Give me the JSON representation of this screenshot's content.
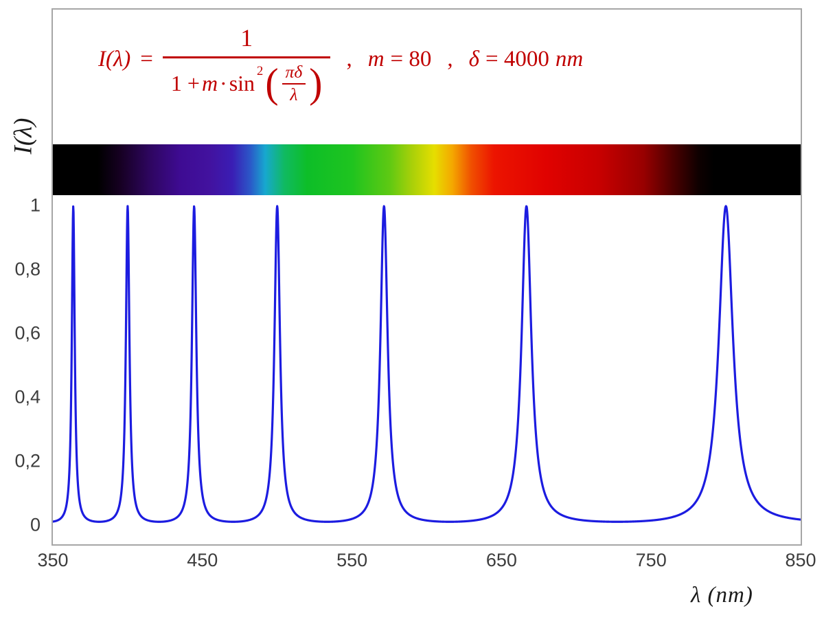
{
  "formula": {
    "color": "#c00000",
    "lhs_func": "I(λ)",
    "equals": "=",
    "numerator": "1",
    "den_one_plus": "1 + ",
    "den_m": "m",
    "den_cdot": " · ",
    "den_sin": "sin",
    "den_power": "2",
    "paren_open": "(",
    "paren_close": ")",
    "inner_numerator": "πδ",
    "inner_denominator": "λ",
    "comma": ",",
    "m_name": "m",
    "m_value": "= 80",
    "delta_name": "δ",
    "delta_value": "= 4000",
    "delta_unit": "nm"
  },
  "chart_data": {
    "type": "line",
    "function": "I(lambda) = 1 / (1 + m * sin^2(pi*delta/lambda))",
    "parameters": {
      "m": 80,
      "delta_nm": 4000
    },
    "x_range_nm": [
      350,
      850
    ],
    "y_range": [
      0,
      1
    ],
    "xlabel": "λ (nm)",
    "ylabel": "I(λ)",
    "x_ticks": [
      {
        "value": 350,
        "label": "350"
      },
      {
        "value": 450,
        "label": "450"
      },
      {
        "value": 550,
        "label": "550"
      },
      {
        "value": 650,
        "label": "650"
      },
      {
        "value": 750,
        "label": "750"
      },
      {
        "value": 850,
        "label": "850"
      }
    ],
    "y_ticks": [
      {
        "value": 0,
        "label": "0"
      },
      {
        "value": 0.2,
        "label": "0,2"
      },
      {
        "value": 0.4,
        "label": "0,4"
      },
      {
        "value": 0.6,
        "label": "0,6"
      },
      {
        "value": 0.8,
        "label": "0,8"
      },
      {
        "value": 1,
        "label": "1"
      }
    ],
    "peak_wavelengths_nm": [
      363.6,
      400.0,
      444.4,
      500.0,
      571.4,
      666.7,
      800.0
    ],
    "baseline_intensity": 0.012,
    "line_color": "#1c1ce0",
    "sample_step_nm": 0.2,
    "grid": false,
    "legend": false
  },
  "spectrum_bar": {
    "stops": [
      {
        "nm": 350,
        "color": "#000000"
      },
      {
        "nm": 380,
        "color": "#000000"
      },
      {
        "nm": 395,
        "color": "#160022"
      },
      {
        "nm": 415,
        "color": "#2e0660"
      },
      {
        "nm": 435,
        "color": "#3e0b92"
      },
      {
        "nm": 455,
        "color": "#42129f"
      },
      {
        "nm": 470,
        "color": "#3a1db4"
      },
      {
        "nm": 482,
        "color": "#2b58c8"
      },
      {
        "nm": 492,
        "color": "#17a8cf"
      },
      {
        "nm": 505,
        "color": "#10ba60"
      },
      {
        "nm": 520,
        "color": "#0dbe28"
      },
      {
        "nm": 550,
        "color": "#1fc41f"
      },
      {
        "nm": 575,
        "color": "#5ec913"
      },
      {
        "nm": 590,
        "color": "#a8d009"
      },
      {
        "nm": 605,
        "color": "#e6de00"
      },
      {
        "nm": 617,
        "color": "#f4a800"
      },
      {
        "nm": 630,
        "color": "#f04e00"
      },
      {
        "nm": 645,
        "color": "#ec1400"
      },
      {
        "nm": 680,
        "color": "#e00200"
      },
      {
        "nm": 715,
        "color": "#c80000"
      },
      {
        "nm": 745,
        "color": "#980000"
      },
      {
        "nm": 765,
        "color": "#4a0000"
      },
      {
        "nm": 782,
        "color": "#0e0000"
      },
      {
        "nm": 792,
        "color": "#000000"
      },
      {
        "nm": 850,
        "color": "#000000"
      }
    ]
  },
  "frame": {
    "border_color": "#a6a6a6"
  }
}
